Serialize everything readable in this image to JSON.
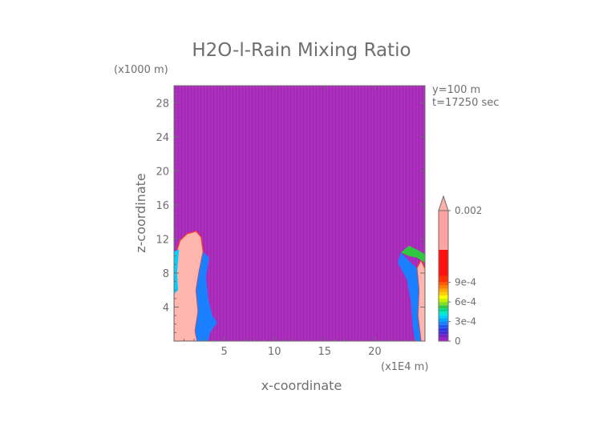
{
  "chart_data": {
    "type": "heatmap",
    "title": "H2O-l-Rain Mixing Ratio",
    "xlabel": "x-coordinate",
    "ylabel": "z-coordinate",
    "x_unit": "(x1E4 m)",
    "y_unit": "(x1000 m)",
    "xlim": [
      0,
      25
    ],
    "ylim": [
      0,
      30
    ],
    "x_ticks": [
      5,
      10,
      15,
      20
    ],
    "y_ticks": [
      4,
      8,
      12,
      16,
      20,
      24,
      28
    ],
    "annotations": [
      "y=100 m",
      "t=17250 sec"
    ],
    "colorbar": {
      "range": [
        0,
        0.002
      ],
      "labels": [
        {
          "value": 0,
          "text": "0"
        },
        {
          "value": 0.0003,
          "text": "3e-4"
        },
        {
          "value": 0.0006,
          "text": "6e-4"
        },
        {
          "value": 0.0009,
          "text": "9e-4"
        },
        {
          "value": 0.002,
          "text": "0.002"
        }
      ],
      "bands": [
        {
          "from": 0,
          "to": 5e-05,
          "color": "#a020c8"
        },
        {
          "from": 5e-05,
          "to": 0.0001,
          "color": "#7a1fc0"
        },
        {
          "from": 0.0001,
          "to": 0.00015,
          "color": "#4b2bd0"
        },
        {
          "from": 0.00015,
          "to": 0.0002,
          "color": "#2a36e0"
        },
        {
          "from": 0.0002,
          "to": 0.00025,
          "color": "#1f55f0"
        },
        {
          "from": 0.00025,
          "to": 0.0003,
          "color": "#1a80ff"
        },
        {
          "from": 0.0003,
          "to": 0.00035,
          "color": "#00a8ff"
        },
        {
          "from": 0.00035,
          "to": 0.0004,
          "color": "#00d0ff"
        },
        {
          "from": 0.0004,
          "to": 0.00045,
          "color": "#00e8d0"
        },
        {
          "from": 0.00045,
          "to": 0.0005,
          "color": "#00d890"
        },
        {
          "from": 0.0005,
          "to": 0.00055,
          "color": "#30c840"
        },
        {
          "from": 0.00055,
          "to": 0.0006,
          "color": "#80e020"
        },
        {
          "from": 0.0006,
          "to": 0.00065,
          "color": "#c8f000"
        },
        {
          "from": 0.00065,
          "to": 0.0007,
          "color": "#ffff00"
        },
        {
          "from": 0.0007,
          "to": 0.00075,
          "color": "#ffd000"
        },
        {
          "from": 0.00075,
          "to": 0.0008,
          "color": "#ffa800"
        },
        {
          "from": 0.0008,
          "to": 0.00085,
          "color": "#ff8000"
        },
        {
          "from": 0.00085,
          "to": 0.0009,
          "color": "#ff5a00"
        },
        {
          "from": 0.0009,
          "to": 0.001,
          "color": "#ff3000"
        },
        {
          "from": 0.001,
          "to": 0.0014,
          "color": "#ff1010"
        },
        {
          "from": 0.0014,
          "to": 0.002,
          "color": "#ffa3a0"
        }
      ],
      "over_color": "#ffb0a8"
    },
    "background_value": 0,
    "background_color": "#a829b9",
    "regions": [
      {
        "name": "left-rain-core",
        "color": "#ffb6ae",
        "outline": "#ff3a20",
        "points": [
          [
            0,
            0
          ],
          [
            0,
            9.5
          ],
          [
            0.6,
            11.8
          ],
          [
            1.3,
            12.6
          ],
          [
            2.2,
            12.9
          ],
          [
            2.7,
            12.2
          ],
          [
            2.9,
            10.5
          ],
          [
            2.5,
            8.2
          ],
          [
            2.2,
            6.0
          ],
          [
            2.4,
            3.5
          ],
          [
            2.1,
            1.2
          ],
          [
            2.3,
            0
          ]
        ]
      },
      {
        "name": "left-rain-fringe",
        "color": "#1a80ff",
        "points": [
          [
            2.3,
            0
          ],
          [
            2.1,
            1.2
          ],
          [
            2.4,
            3.5
          ],
          [
            2.2,
            6.0
          ],
          [
            2.5,
            8.2
          ],
          [
            2.9,
            10.5
          ],
          [
            3.5,
            9.8
          ],
          [
            3.2,
            7.5
          ],
          [
            3.4,
            5.0
          ],
          [
            3.8,
            3.0
          ],
          [
            4.3,
            2.2
          ],
          [
            3.6,
            1.0
          ],
          [
            3.4,
            0
          ]
        ]
      },
      {
        "name": "left-edge-band",
        "color": "#00d0ff",
        "points": [
          [
            0,
            5.5
          ],
          [
            0,
            10.5
          ],
          [
            0.5,
            10.8
          ],
          [
            0.3,
            8.0
          ],
          [
            0.4,
            6.0
          ]
        ]
      },
      {
        "name": "right-rain-core",
        "color": "#ffb6ae",
        "outline": "#ff3a20",
        "points": [
          [
            25,
            0
          ],
          [
            25,
            8.5
          ],
          [
            24.6,
            9.5
          ],
          [
            24.2,
            8.6
          ],
          [
            24.4,
            6.0
          ],
          [
            24.3,
            3.0
          ],
          [
            24.6,
            0
          ]
        ]
      },
      {
        "name": "right-rain-fringe",
        "color": "#1a80ff",
        "points": [
          [
            24.6,
            0
          ],
          [
            24.3,
            3.0
          ],
          [
            24.4,
            6.0
          ],
          [
            24.2,
            8.6
          ],
          [
            23.5,
            9.3
          ],
          [
            22.6,
            10.4
          ],
          [
            22.3,
            9.2
          ],
          [
            23.2,
            7.2
          ],
          [
            23.6,
            4.5
          ],
          [
            23.8,
            1.5
          ],
          [
            24.0,
            0
          ]
        ]
      },
      {
        "name": "right-upper-streak",
        "color": "#30c840",
        "points": [
          [
            22.6,
            10.4
          ],
          [
            23.4,
            11.2
          ],
          [
            24.3,
            10.7
          ],
          [
            25,
            10.2
          ],
          [
            25,
            9.2
          ],
          [
            24.2,
            9.8
          ],
          [
            23.4,
            10.0
          ]
        ]
      }
    ]
  }
}
